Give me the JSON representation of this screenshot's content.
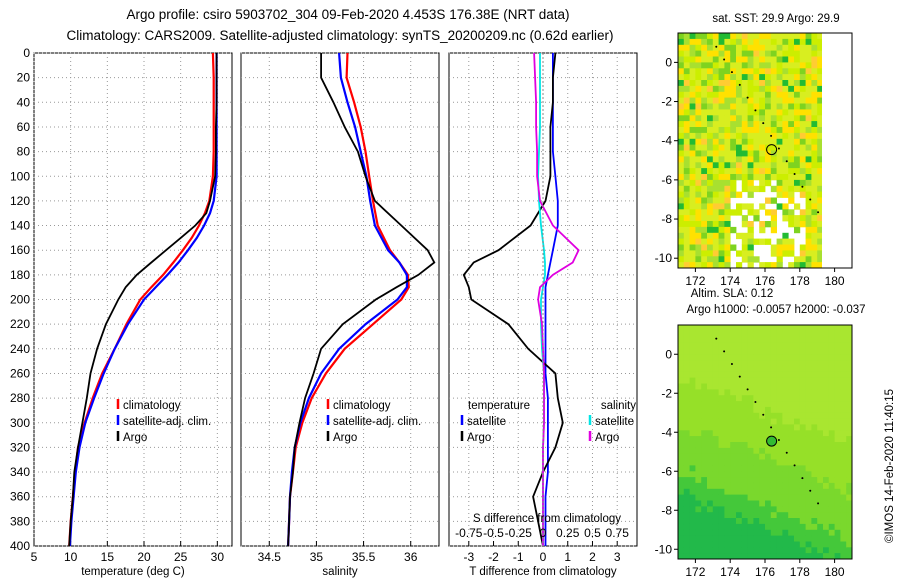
{
  "title_line1": "Argo profile: csiro 5903702_304 09-Feb-2020 4.453S 176.38E (NRT data)",
  "title_line2": "Climatology: CARS2009. Satellite-adjusted climatology: synTS_20200209.nc (0.62d earlier)",
  "credit": "©IMOS 14-Feb-2020 11:40:15",
  "colors": {
    "climatology": "#ff0000",
    "satellite": "#0000ff",
    "argo": "#000000",
    "sat_t": "#00e5e5",
    "sal_diff": "#e000e0"
  },
  "depth_ticks": [
    "0",
    "20",
    "40",
    "60",
    "80",
    "100",
    "120",
    "140",
    "160",
    "180",
    "200",
    "220",
    "240",
    "260",
    "280",
    "300",
    "320",
    "340",
    "360",
    "380",
    "400"
  ],
  "chart_data": [
    {
      "type": "line",
      "name": "temperature",
      "xlabel": "temperature (deg C)",
      "xlim": [
        5,
        32
      ],
      "ylim": [
        0,
        400
      ],
      "xticks": [
        5,
        10,
        15,
        20,
        25,
        30
      ],
      "legend": [
        "climatology",
        "satellite-adj. clim.",
        "Argo"
      ],
      "depth": [
        0,
        20,
        40,
        60,
        80,
        100,
        120,
        130,
        140,
        150,
        160,
        170,
        180,
        190,
        200,
        220,
        240,
        260,
        280,
        300,
        320,
        340,
        360,
        380,
        400
      ],
      "series": [
        {
          "name": "climatology",
          "values": [
            29.4,
            29.5,
            29.5,
            29.5,
            29.5,
            29.4,
            28.9,
            28.3,
            27.5,
            26.5,
            25.3,
            24.0,
            22.6,
            21.0,
            19.5,
            17.6,
            16.0,
            14.3,
            13.0,
            11.9,
            11.0,
            10.6,
            10.3,
            10.0,
            9.8
          ]
        },
        {
          "name": "satellite-adj. clim.",
          "values": [
            29.9,
            29.9,
            29.9,
            29.9,
            29.9,
            29.9,
            29.5,
            29.0,
            28.2,
            27.2,
            26.0,
            24.7,
            23.2,
            21.6,
            20.0,
            17.8,
            16.0,
            14.5,
            13.2,
            12.0,
            11.2,
            10.7,
            10.4,
            10.1,
            9.9
          ]
        },
        {
          "name": "Argo",
          "values": [
            29.9,
            29.9,
            29.9,
            29.8,
            29.8,
            29.7,
            29.0,
            28.5,
            27.0,
            25.0,
            23.0,
            21.0,
            19.0,
            17.5,
            16.5,
            14.8,
            13.6,
            12.7,
            12.2,
            11.6,
            11.0,
            10.5,
            10.3,
            10.0,
            9.8
          ]
        }
      ]
    },
    {
      "type": "line",
      "name": "salinity",
      "xlabel": "salinity",
      "xlim": [
        34.2,
        36.3
      ],
      "ylim": [
        0,
        400
      ],
      "xticks": [
        34.5,
        35,
        35.5,
        36
      ],
      "legend": [
        "climatology",
        "satellite-adj. clim.",
        "Argo"
      ],
      "depth": [
        0,
        20,
        40,
        60,
        80,
        100,
        120,
        140,
        160,
        170,
        180,
        190,
        200,
        220,
        240,
        260,
        280,
        300,
        320,
        340,
        360,
        380,
        400
      ],
      "series": [
        {
          "name": "climatology",
          "values": [
            35.33,
            35.32,
            35.4,
            35.47,
            35.52,
            35.56,
            35.6,
            35.65,
            35.78,
            35.88,
            35.97,
            35.98,
            35.9,
            35.6,
            35.3,
            35.1,
            34.95,
            34.85,
            34.78,
            34.75,
            34.72,
            34.71,
            34.7
          ]
        },
        {
          "name": "satellite-adj. clim.",
          "values": [
            35.24,
            35.26,
            35.33,
            35.41,
            35.47,
            35.53,
            35.57,
            35.62,
            35.76,
            35.88,
            35.96,
            35.96,
            35.86,
            35.52,
            35.24,
            35.05,
            34.92,
            34.83,
            34.77,
            34.74,
            34.72,
            34.71,
            34.7
          ]
        },
        {
          "name": "Argo",
          "values": [
            35.05,
            35.05,
            35.18,
            35.3,
            35.44,
            35.52,
            35.62,
            35.9,
            36.18,
            36.25,
            36.08,
            35.85,
            35.63,
            35.28,
            35.05,
            34.97,
            34.88,
            34.82,
            34.77,
            34.75,
            34.72,
            34.71,
            34.7
          ]
        }
      ]
    },
    {
      "type": "line",
      "name": "difference",
      "xlabel": "T difference from climatology",
      "xlim": [
        -3.8,
        3.8
      ],
      "ylim": [
        0,
        400
      ],
      "xticks": [
        -3,
        -2,
        -1,
        0,
        1,
        2,
        3
      ],
      "top_axis_label": "S difference from climatology",
      "top_ticks": [
        "-0.75",
        "-0.5",
        "-0.25",
        "0",
        "0.25",
        "0.5",
        "0.75"
      ],
      "legend": [
        "temperature",
        "satellite",
        "Argo",
        "salinity",
        "satellite",
        "Argo"
      ],
      "depth": [
        0,
        20,
        40,
        60,
        80,
        100,
        120,
        140,
        160,
        170,
        180,
        190,
        200,
        220,
        240,
        260,
        280,
        300,
        320,
        340,
        360,
        380,
        400
      ],
      "series": [
        {
          "name": "T satellite",
          "values": [
            0.4,
            0.4,
            0.4,
            0.4,
            0.4,
            0.5,
            0.6,
            0.6,
            0.4,
            0.3,
            0.2,
            0.1,
            0.1,
            0.1,
            0.1,
            0.1,
            0.2,
            0.2,
            0.2,
            0.2,
            0.1,
            0.1,
            0.1
          ]
        },
        {
          "name": "T Argo",
          "values": [
            0.5,
            0.4,
            0.4,
            0.3,
            0.3,
            0.3,
            0.1,
            -0.5,
            -1.8,
            -2.8,
            -3.2,
            -3.0,
            -2.9,
            -1.4,
            -0.6,
            0.5,
            0.6,
            0.8,
            0.5,
            0.0,
            -0.4,
            -0.2,
            0.0
          ]
        },
        {
          "name": "S satellite",
          "values": [
            -0.03,
            -0.03,
            -0.03,
            -0.03,
            -0.04,
            -0.05,
            -0.04,
            -0.02,
            0.01,
            0.02,
            0.02,
            0.0,
            -0.02,
            -0.02,
            -0.01,
            0.01,
            0.01,
            0.01,
            0.0,
            0.0,
            0.0,
            0.0,
            0.0
          ]
        },
        {
          "name": "S Argo",
          "values": [
            -0.09,
            -0.08,
            -0.07,
            -0.07,
            -0.06,
            -0.06,
            -0.03,
            0.1,
            0.36,
            0.3,
            0.1,
            -0.03,
            -0.05,
            -0.01,
            0.0,
            0.01,
            0.01,
            0.01,
            0.0,
            0.0,
            0.0,
            0.0,
            0.0
          ]
        }
      ]
    },
    {
      "type": "heatmap",
      "name": "sat-sst-map",
      "title": "sat. SST: 29.9 Argo: 29.9",
      "xlim": [
        171,
        181
      ],
      "ylim": [
        -10.5,
        1.5
      ],
      "xticks": [
        "172",
        "174",
        "176",
        "178",
        "180"
      ],
      "yticks": [
        "0",
        "-2",
        "-4",
        "-6",
        "-8",
        "-10"
      ],
      "marker": {
        "lon": 176.38,
        "lat": -4.453
      }
    },
    {
      "type": "heatmap",
      "name": "altimetry-map",
      "title": "Altim. SLA: 0.12",
      "subtitle": "Argo h1000: -0.0057 h2000: -0.037",
      "xlim": [
        171,
        181
      ],
      "ylim": [
        -10.5,
        1.5
      ],
      "xticks": [
        "172",
        "174",
        "176",
        "178",
        "180"
      ],
      "yticks": [
        "0",
        "-2",
        "-4",
        "-6",
        "-8",
        "-10"
      ],
      "marker": {
        "lon": 176.38,
        "lat": -4.453
      }
    }
  ]
}
